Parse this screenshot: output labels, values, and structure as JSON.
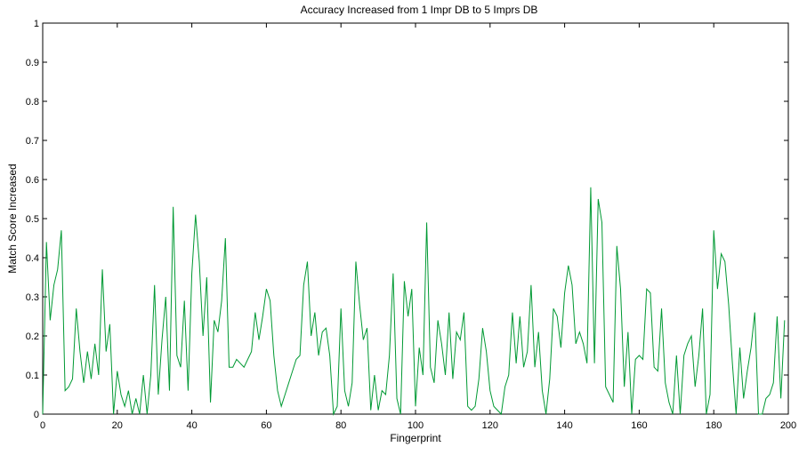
{
  "chart_data": {
    "type": "line",
    "title": "Accuracy Increased from 1 Impr DB to 5 Imprs DB",
    "xlabel": "Fingerprint",
    "ylabel": "Match Score Increased",
    "xlim": [
      0,
      200
    ],
    "ylim": [
      0,
      1
    ],
    "xticks": [
      "0",
      "20",
      "40",
      "60",
      "80",
      "100",
      "120",
      "140",
      "160",
      "180",
      "200"
    ],
    "yticks": [
      "0",
      "0.1",
      "0.2",
      "0.3",
      "0.4",
      "0.5",
      "0.6",
      "0.7",
      "0.8",
      "0.9",
      "1"
    ],
    "grid": false,
    "line_color": "#009933",
    "series": [
      {
        "values": [
          0.0,
          0.44,
          0.24,
          0.33,
          0.37,
          0.47,
          0.06,
          0.07,
          0.09,
          0.27,
          0.16,
          0.08,
          0.16,
          0.09,
          0.18,
          0.1,
          0.37,
          0.16,
          0.23,
          0.0,
          0.11,
          0.05,
          0.02,
          0.06,
          0.0,
          0.04,
          0.0,
          0.1,
          0.0,
          0.1,
          0.33,
          0.05,
          0.19,
          0.3,
          0.06,
          0.53,
          0.15,
          0.12,
          0.29,
          0.06,
          0.36,
          0.51,
          0.39,
          0.2,
          0.35,
          0.03,
          0.24,
          0.21,
          0.29,
          0.45,
          0.12,
          0.12,
          0.14,
          0.13,
          0.12,
          0.14,
          0.16,
          0.26,
          0.19,
          0.25,
          0.32,
          0.29,
          0.15,
          0.06,
          0.02,
          0.05,
          0.08,
          0.11,
          0.14,
          0.15,
          0.33,
          0.39,
          0.2,
          0.26,
          0.15,
          0.21,
          0.22,
          0.15,
          0.0,
          0.02,
          0.27,
          0.06,
          0.02,
          0.08,
          0.39,
          0.28,
          0.19,
          0.22,
          0.01,
          0.1,
          0.01,
          0.06,
          0.05,
          0.15,
          0.36,
          0.04,
          0.0,
          0.34,
          0.25,
          0.32,
          0.02,
          0.17,
          0.1,
          0.49,
          0.12,
          0.08,
          0.24,
          0.18,
          0.1,
          0.26,
          0.09,
          0.21,
          0.19,
          0.26,
          0.02,
          0.01,
          0.02,
          0.09,
          0.22,
          0.16,
          0.06,
          0.02,
          0.01,
          0.0,
          0.07,
          0.1,
          0.26,
          0.13,
          0.25,
          0.12,
          0.16,
          0.33,
          0.12,
          0.21,
          0.06,
          0.0,
          0.09,
          0.27,
          0.25,
          0.17,
          0.31,
          0.38,
          0.33,
          0.18,
          0.21,
          0.18,
          0.13,
          0.58,
          0.13,
          0.55,
          0.49,
          0.07,
          0.05,
          0.03,
          0.43,
          0.32,
          0.07,
          0.21,
          0.0,
          0.14,
          0.15,
          0.14,
          0.32,
          0.31,
          0.12,
          0.11,
          0.27,
          0.08,
          0.03,
          0.0,
          0.15,
          0.0,
          0.15,
          0.18,
          0.2,
          0.07,
          0.15,
          0.27,
          0.0,
          0.05,
          0.47,
          0.32,
          0.41,
          0.39,
          0.28,
          0.13,
          0.0,
          0.17,
          0.04,
          0.11,
          0.17,
          0.26,
          0.0,
          0.0,
          0.04,
          0.05,
          0.08,
          0.25,
          0.04,
          0.24
        ]
      }
    ]
  }
}
